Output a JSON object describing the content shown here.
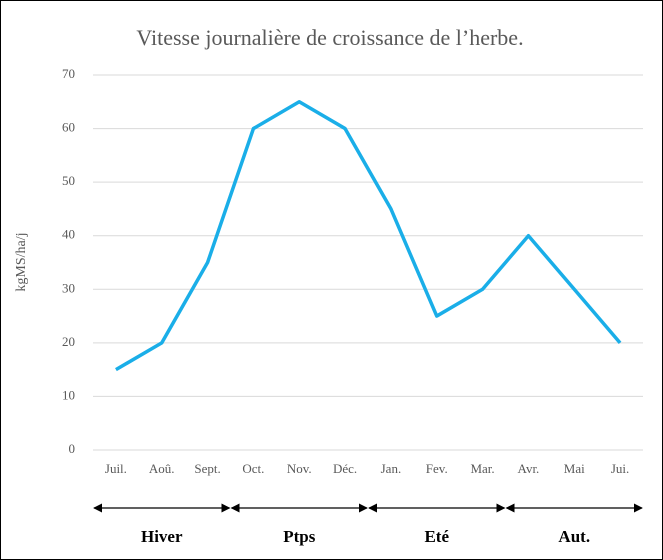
{
  "chart_data": {
    "type": "line",
    "title": "Vitesse journalière de croissance de l’herbe.",
    "y_label": "kgMS/ha/j",
    "categories": [
      "Juil.",
      "Aoû.",
      "Sept.",
      "Oct.",
      "Nov.",
      "Déc.",
      "Jan.",
      "Fev.",
      "Mar.",
      "Avr.",
      "Mai",
      "Jui."
    ],
    "series": [
      {
        "color": "#1aaee8",
        "values": [
          15,
          20,
          35,
          60,
          65,
          60,
          45,
          25,
          30,
          40,
          30,
          20
        ]
      }
    ],
    "ylim": [
      0,
      70
    ],
    "yticks": [
      0,
      10,
      20,
      30,
      40,
      50,
      60,
      70
    ],
    "grid": true,
    "seasons": [
      "Hiver",
      "Ptps",
      "Eté",
      "Aut."
    ]
  }
}
